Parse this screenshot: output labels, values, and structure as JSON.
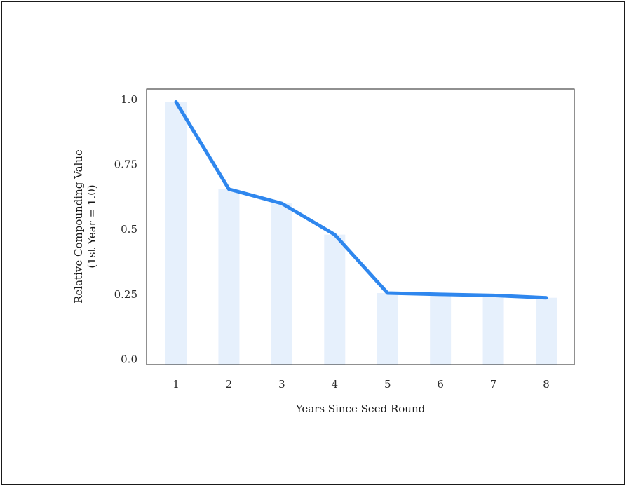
{
  "chart_data": {
    "type": "line",
    "title": "",
    "xlabel": "Years Since Seed Round",
    "ylabel_line1": "Relative Compounding  Value",
    "ylabel_line2": "(1st Year = 1.0)",
    "categories": [
      "1",
      "2",
      "3",
      "4",
      "5",
      "6",
      "7",
      "8"
    ],
    "x": [
      1,
      2,
      3,
      4,
      5,
      6,
      7,
      8
    ],
    "y_ticks": [
      "0.0",
      "0.25",
      "0.5",
      "0.75",
      "1.0"
    ],
    "y_tick_values": [
      0,
      0.25,
      0.5,
      0.75,
      1.0
    ],
    "ylim": [
      -0.02,
      1.04
    ],
    "series": [
      {
        "values": [
          0.99,
          0.655,
          0.6,
          0.48,
          0.255,
          0.25,
          0.246,
          0.237
        ]
      }
    ],
    "bars_mirror_series": true,
    "grid": false,
    "colors": {
      "line": "#2f87ee",
      "bars": "#e6f0fc",
      "axes": "#222222"
    }
  }
}
